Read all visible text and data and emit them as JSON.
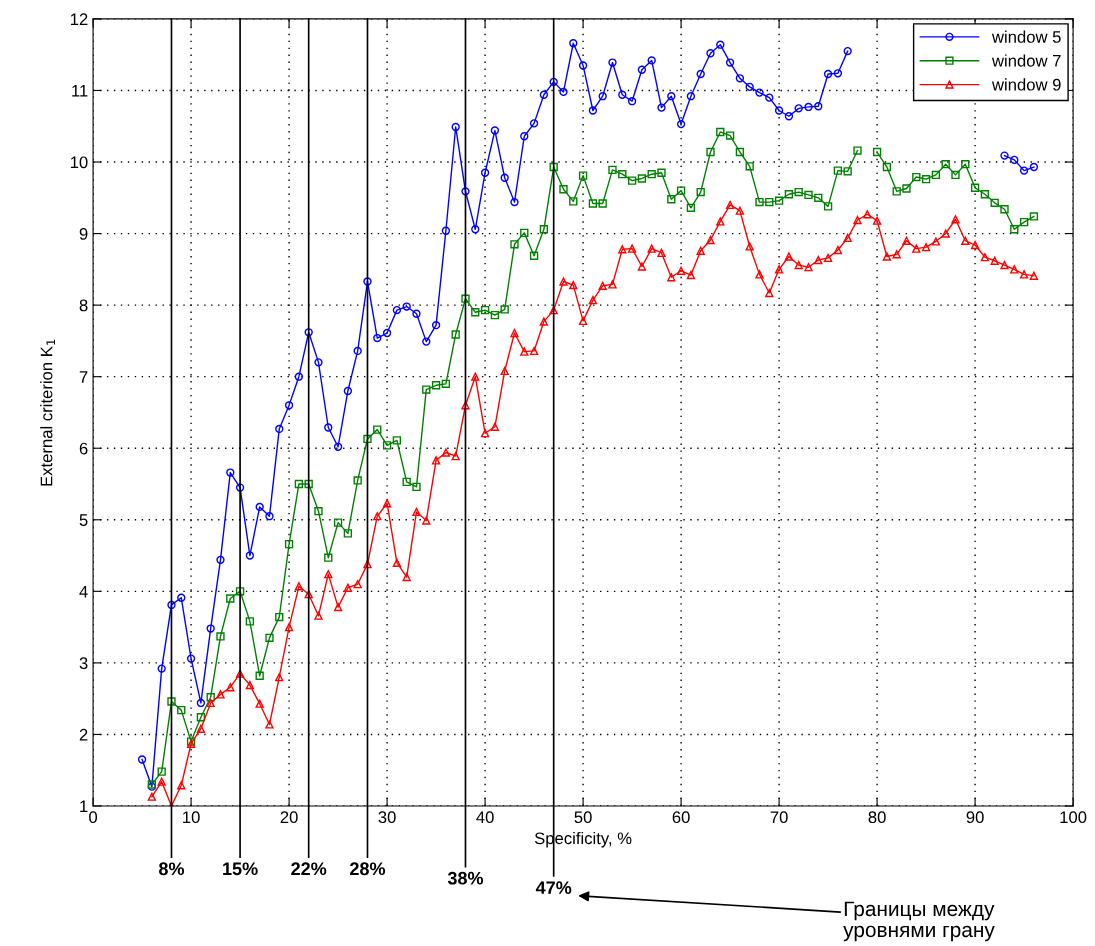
{
  "chart_data": {
    "type": "line",
    "xlabel": "Specificity, %",
    "ylabel": "External criterion K$_{1}$",
    "xlim": [
      0,
      100
    ],
    "xticks": [
      0,
      10,
      20,
      30,
      40,
      50,
      60,
      70,
      80,
      90,
      100
    ],
    "ylim": [
      1,
      12
    ],
    "yticks": [
      1,
      2,
      3,
      4,
      5,
      6,
      7,
      8,
      9,
      10,
      11,
      12
    ],
    "grid": true,
    "legend": "top right",
    "series": [
      {
        "name": "window 5",
        "color": "#0000ff",
        "marker": "circle",
        "x": [
          5,
          6,
          7,
          8,
          9,
          10,
          11,
          12,
          13,
          14,
          15,
          16,
          17,
          18,
          19,
          20,
          21,
          22,
          23,
          24,
          25,
          26,
          27,
          28,
          29,
          30,
          31,
          32,
          33,
          34,
          35,
          36,
          37,
          38,
          39,
          40,
          41,
          42,
          43,
          44,
          45,
          46,
          47,
          48,
          49,
          50,
          51,
          52,
          53,
          54,
          55,
          56,
          57,
          58,
          59,
          60,
          61,
          62,
          63,
          64,
          65,
          66,
          67,
          68,
          69,
          70,
          71,
          72,
          73,
          74,
          75,
          76,
          77,
          78,
          79,
          80,
          81,
          82,
          83,
          84,
          85,
          86,
          87,
          88,
          89,
          90,
          91,
          92,
          93,
          94,
          95,
          96
        ],
        "values": [
          1.65,
          1.27,
          2.92,
          3.81,
          3.91,
          3.06,
          2.44,
          3.48,
          4.44,
          5.66,
          5.45,
          4.5,
          5.18,
          5.05,
          6.27,
          6.6,
          7.0,
          7.62,
          7.2,
          6.29,
          6.02,
          6.8,
          7.36,
          8.33,
          7.54,
          7.61,
          7.93,
          7.98,
          7.88,
          7.49,
          7.72,
          9.04,
          10.49,
          9.59,
          9.06,
          9.85,
          10.44,
          9.78,
          9.44,
          10.36,
          10.54,
          10.94,
          11.12,
          10.98,
          11.66,
          11.35,
          10.72,
          10.92,
          11.39,
          10.94,
          10.85,
          11.29,
          11.42,
          10.76,
          10.92,
          10.53,
          10.92,
          11.23,
          11.52,
          11.64,
          11.39,
          11.17,
          11.05,
          10.97,
          10.9,
          10.72,
          10.64,
          10.75,
          10.77,
          10.78,
          11.23,
          11.24,
          11.55,
          null,
          null,
          null,
          null,
          null,
          null,
          null,
          null,
          null,
          null,
          null,
          null,
          null,
          null,
          null,
          10.09,
          10.03,
          9.88,
          9.93
        ]
      },
      {
        "name": "window 7",
        "color": "#008000",
        "marker": "square",
        "x": [
          6,
          7,
          8,
          9,
          10,
          11,
          12,
          13,
          14,
          15,
          16,
          17,
          18,
          19,
          20,
          21,
          22,
          23,
          24,
          25,
          26,
          27,
          28,
          29,
          30,
          31,
          32,
          33,
          34,
          35,
          36,
          37,
          38,
          39,
          40,
          41,
          42,
          43,
          44,
          45,
          46,
          47,
          48,
          49,
          50,
          51,
          52,
          53,
          54,
          55,
          56,
          57,
          58,
          59,
          60,
          61,
          62,
          63,
          64,
          65,
          66,
          67,
          68,
          69,
          70,
          71,
          72,
          73,
          74,
          75,
          76,
          77,
          78,
          79,
          80,
          81,
          82,
          83,
          84,
          85,
          86,
          87,
          88,
          89,
          90,
          91,
          92,
          93,
          94,
          95,
          96
        ],
        "values": [
          1.3,
          1.48,
          2.46,
          2.34,
          1.9,
          2.24,
          2.52,
          3.37,
          3.9,
          4.0,
          3.58,
          2.82,
          3.35,
          3.64,
          4.66,
          5.5,
          5.5,
          5.12,
          4.47,
          4.96,
          4.81,
          5.55,
          6.13,
          6.26,
          6.04,
          6.11,
          5.53,
          5.46,
          6.82,
          6.88,
          6.9,
          7.59,
          8.09,
          7.9,
          7.93,
          7.86,
          7.94,
          8.85,
          9.01,
          8.69,
          9.06,
          9.93,
          9.62,
          9.45,
          9.81,
          9.42,
          9.42,
          9.89,
          9.83,
          9.74,
          9.77,
          9.83,
          9.85,
          9.48,
          9.6,
          9.36,
          9.58,
          10.14,
          10.42,
          10.37,
          10.14,
          9.94,
          9.44,
          9.44,
          9.46,
          9.55,
          9.58,
          9.54,
          9.5,
          9.38,
          9.88,
          9.87,
          10.16,
          null,
          10.14,
          9.93,
          9.59,
          9.63,
          9.79,
          9.76,
          9.82,
          9.97,
          9.82,
          9.97,
          9.64,
          9.55,
          9.43,
          9.34,
          9.06,
          9.16,
          9.24
        ]
      },
      {
        "name": "window 9",
        "color": "#ff0000",
        "marker": "triangle",
        "x": [
          6,
          7,
          8,
          9,
          10,
          11,
          12,
          13,
          14,
          15,
          16,
          17,
          18,
          19,
          20,
          21,
          22,
          23,
          24,
          25,
          26,
          27,
          28,
          29,
          30,
          31,
          32,
          33,
          34,
          35,
          36,
          37,
          38,
          39,
          40,
          41,
          42,
          43,
          44,
          45,
          46,
          47,
          48,
          49,
          50,
          51,
          52,
          53,
          54,
          55,
          56,
          57,
          58,
          59,
          60,
          61,
          62,
          63,
          64,
          65,
          66,
          67,
          68,
          69,
          70,
          71,
          72,
          73,
          74,
          75,
          76,
          77,
          78,
          79,
          80,
          81,
          82,
          83,
          84,
          85,
          86,
          87,
          88,
          89,
          90,
          91,
          92,
          93,
          94,
          95,
          96
        ],
        "values": [
          1.13,
          1.34,
          1.0,
          1.29,
          1.87,
          2.08,
          2.44,
          2.56,
          2.66,
          2.85,
          2.69,
          2.43,
          2.14,
          2.8,
          3.5,
          4.07,
          3.96,
          3.66,
          4.24,
          3.78,
          4.05,
          4.1,
          4.38,
          5.05,
          5.23,
          4.4,
          4.2,
          5.11,
          4.99,
          5.83,
          5.94,
          5.89,
          6.6,
          7.0,
          6.21,
          6.3,
          7.08,
          7.61,
          7.35,
          7.36,
          7.77,
          7.93,
          8.33,
          8.28,
          7.78,
          8.07,
          8.27,
          8.29,
          8.78,
          8.79,
          8.54,
          8.79,
          8.73,
          8.39,
          8.48,
          8.42,
          8.76,
          8.91,
          9.17,
          9.4,
          9.32,
          8.82,
          8.43,
          8.17,
          8.5,
          8.68,
          8.56,
          8.53,
          8.63,
          8.66,
          8.77,
          8.94,
          9.19,
          9.27,
          9.18,
          8.68,
          8.71,
          8.9,
          8.79,
          8.81,
          8.89,
          9.0,
          9.2,
          8.9,
          8.84,
          8.67,
          8.62,
          8.56,
          8.5,
          8.43,
          8.41
        ]
      }
    ],
    "ref_lines": [
      {
        "axis": "x",
        "value": 8,
        "label": "8%",
        "color": "#000000"
      },
      {
        "axis": "x",
        "value": 15,
        "label": "15%",
        "color": "#000000"
      },
      {
        "axis": "x",
        "value": 22,
        "label": "22%",
        "color": "#000000"
      },
      {
        "axis": "x",
        "value": 28,
        "label": "28%",
        "color": "#000000"
      },
      {
        "axis": "x",
        "value": 38,
        "label": "38%",
        "color": "#000000"
      },
      {
        "axis": "x",
        "value": 47,
        "label": "47%",
        "color": "#000000"
      }
    ],
    "annotations": [
      "Границы между\nуровнями грану"
    ]
  }
}
